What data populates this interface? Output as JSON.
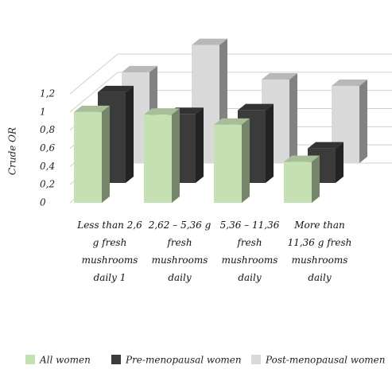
{
  "chart_data": {
    "type": "bar3d",
    "y_label": "Crude OR",
    "categories": [
      "Less than 2,6 g fresh mushrooms daily 1",
      "2,62 – 5,36 g fresh mushrooms daily",
      "5,36 – 11,36 fresh mushrooms daily",
      "More than 11,36 g fresh mushrooms daily"
    ],
    "series": [
      {
        "name": "All women",
        "color": "#c5e0b3",
        "values": [
          1.0,
          0.97,
          0.86,
          0.45
        ]
      },
      {
        "name": "Pre-menopausal women",
        "color": "#3b3b3b",
        "values": [
          1.0,
          0.76,
          0.8,
          0.38
        ]
      },
      {
        "name": "Post-menopausal women",
        "color": "#d9d9d9",
        "values": [
          1.0,
          1.3,
          0.92,
          0.85
        ]
      }
    ],
    "ylim": [
      0,
      1.2
    ],
    "yticks": [
      {
        "value": 0,
        "label": "0"
      },
      {
        "value": 0.2,
        "label": "0,2"
      },
      {
        "value": 0.4,
        "label": "0,4"
      },
      {
        "value": 0.6,
        "label": "0,6"
      },
      {
        "value": 0.8,
        "label": "0,8"
      },
      {
        "value": 1,
        "label": "1"
      },
      {
        "value": 1.2,
        "label": "1,2"
      }
    ],
    "grid": true
  }
}
